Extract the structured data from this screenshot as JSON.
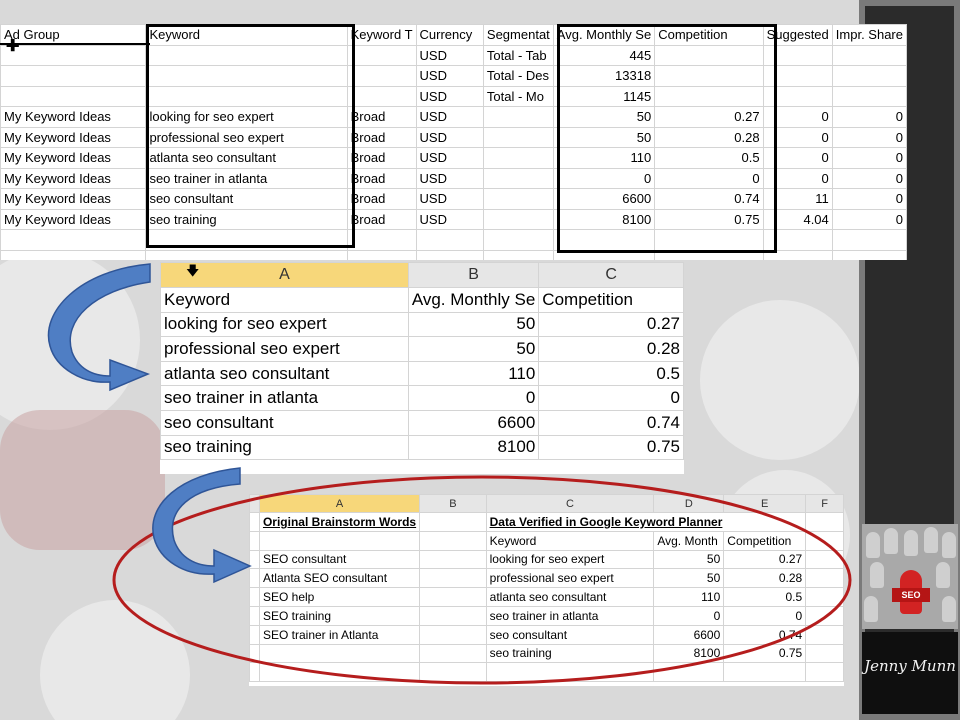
{
  "colors": {
    "background": "#d9d9d9",
    "arrow_fill": "#4f7ec4",
    "ellipse_stroke": "#b51d1d",
    "column_header_selected": "#f7d77a",
    "right_panel": "#2b2b2b"
  },
  "sheet1": {
    "headers": [
      "Ad Group",
      "Keyword",
      "Keyword T",
      "Currency",
      "Segmentat",
      "Avg. Monthly Se",
      "Competition",
      "Suggested",
      "Impr. Share"
    ],
    "rows": [
      [
        "",
        "",
        "",
        "USD",
        "Total - Tab",
        "445",
        "",
        "",
        ""
      ],
      [
        "",
        "",
        "",
        "USD",
        "Total - Des",
        "13318",
        "",
        "",
        ""
      ],
      [
        "",
        "",
        "",
        "USD",
        "Total - Mo",
        "1145",
        "",
        "",
        ""
      ],
      [
        "My Keyword Ideas",
        "looking for seo expert",
        "Broad",
        "USD",
        "",
        "50",
        "0.27",
        "0",
        "0"
      ],
      [
        "My Keyword Ideas",
        "professional seo expert",
        "Broad",
        "USD",
        "",
        "50",
        "0.28",
        "0",
        "0"
      ],
      [
        "My Keyword Ideas",
        "atlanta seo consultant",
        "Broad",
        "USD",
        "",
        "110",
        "0.5",
        "0",
        "0"
      ],
      [
        "My Keyword Ideas",
        "seo trainer in atlanta",
        "Broad",
        "USD",
        "",
        "0",
        "0",
        "0",
        "0"
      ],
      [
        "My Keyword Ideas",
        "seo consultant",
        "Broad",
        "USD",
        "",
        "6600",
        "0.74",
        "11",
        "0"
      ],
      [
        "My Keyword Ideas",
        "seo training",
        "Broad",
        "USD",
        "",
        "8100",
        "0.75",
        "4.04",
        "0"
      ],
      [
        "",
        "",
        "",
        "",
        "",
        "",
        "",
        "",
        ""
      ],
      [
        "",
        "",
        "",
        "",
        "",
        "",
        "",
        "",
        ""
      ]
    ]
  },
  "sheet2": {
    "column_headers": [
      "A",
      "B",
      "C"
    ],
    "header_row": [
      "Keyword",
      "Avg. Monthly Se",
      "Competition"
    ],
    "rows": [
      [
        "looking for seo expert",
        "50",
        "0.27"
      ],
      [
        "professional seo expert",
        "50",
        "0.28"
      ],
      [
        "atlanta seo consultant",
        "110",
        "0.5"
      ],
      [
        "seo trainer in atlanta",
        "0",
        "0"
      ],
      [
        "seo consultant",
        "6600",
        "0.74"
      ],
      [
        "seo training",
        "8100",
        "0.75"
      ]
    ]
  },
  "sheet3": {
    "column_headers": [
      "A",
      "B",
      "C",
      "D",
      "E",
      "F"
    ],
    "title_left": "Original Brainstorm Words",
    "title_right": "Data Verified in Google Keyword Planner",
    "subheader": [
      "Keyword",
      "Avg. Month",
      "Competition"
    ],
    "rows": [
      [
        "SEO consultant",
        "looking for seo expert",
        "50",
        "0.27"
      ],
      [
        "Atlanta SEO consultant",
        "professional seo expert",
        "50",
        "0.28"
      ],
      [
        "SEO help",
        "atlanta seo consultant",
        "110",
        "0.5"
      ],
      [
        "SEO training",
        "seo trainer in atlanta",
        "0",
        "0"
      ],
      [
        "SEO trainer in Atlanta",
        "seo consultant",
        "6600",
        "0.74"
      ],
      [
        "",
        "seo training",
        "8100",
        "0.75"
      ],
      [
        "",
        "",
        "",
        ""
      ]
    ]
  },
  "branding": {
    "badge_text": "SEO",
    "signature": "Jenny Munn"
  }
}
